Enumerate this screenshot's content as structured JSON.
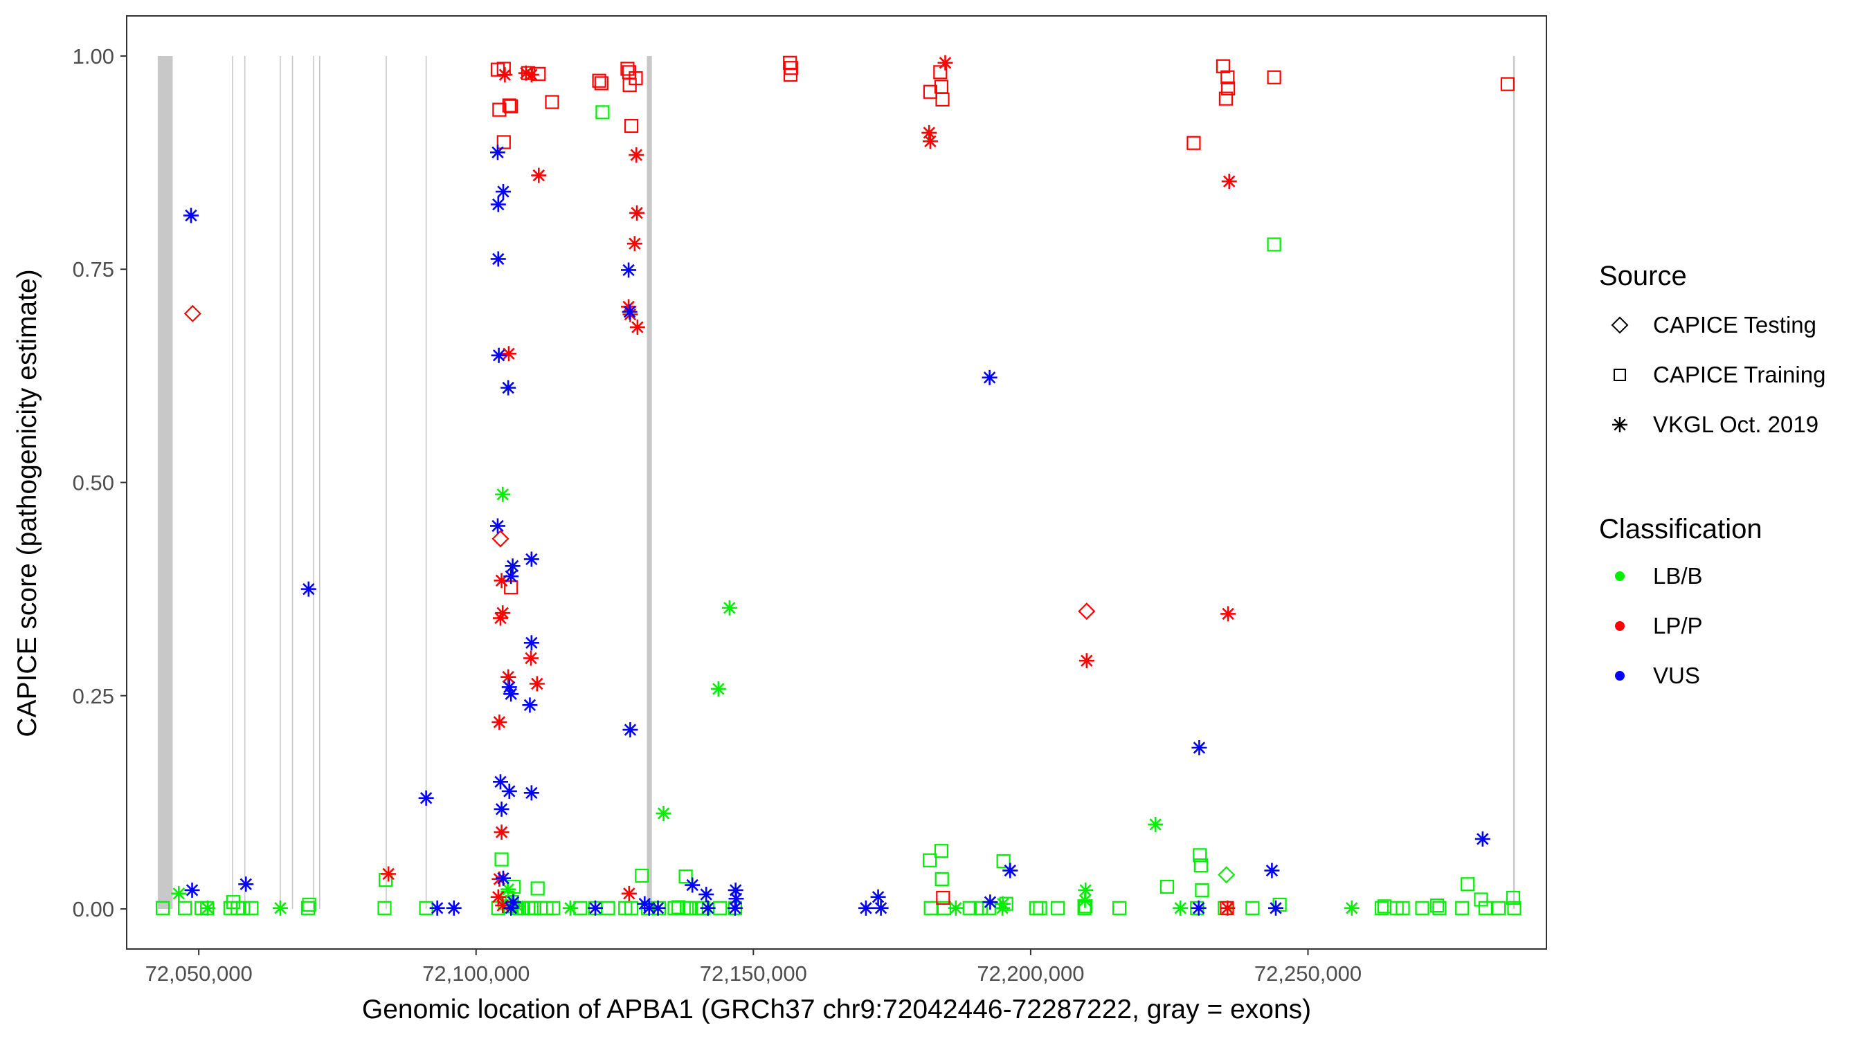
{
  "chart_data": {
    "type": "scatter",
    "xlabel": "Genomic location of APBA1 (GRCh37 chr9:72042446-72287222, gray = exons)",
    "ylabel": "CAPICE score (pathogenicity estimate)",
    "xlim": [
      72037000,
      72293000
    ],
    "ylim": [
      -0.047,
      1.047
    ],
    "x_ticks": [
      72050000,
      72100000,
      72150000,
      72200000,
      72250000
    ],
    "x_tick_labels": [
      "72,050,000",
      "72,100,000",
      "72,150,000",
      "72,200,000",
      "72,250,000"
    ],
    "y_ticks": [
      0,
      0.25,
      0.5,
      0.75,
      1.0
    ],
    "y_tick_labels": [
      "0.00",
      "0.25",
      "0.50",
      "0.75",
      "1.00"
    ],
    "grid": false,
    "exons": [
      [
        72042600,
        72045300
      ],
      [
        72056000,
        72056200
      ],
      [
        72058200,
        72058400
      ],
      [
        72064600,
        72064800
      ],
      [
        72066800,
        72067000
      ],
      [
        72070600,
        72070800
      ],
      [
        72071700,
        72071900
      ],
      [
        72083700,
        72083900
      ],
      [
        72090900,
        72091100
      ],
      [
        72130800,
        72131700
      ],
      [
        72287000,
        72287300
      ]
    ],
    "legend": {
      "placement": "right",
      "shape_title": "Source",
      "shape_entries": [
        {
          "label": "CAPICE Testing",
          "shape": "diamond"
        },
        {
          "label": "CAPICE Training",
          "shape": "square"
        },
        {
          "label": "VKGL Oct. 2019",
          "shape": "asterisk"
        }
      ],
      "color_title": "Classification",
      "color_entries": [
        {
          "label": "LB/B",
          "color": "#00ee00"
        },
        {
          "label": "LP/P",
          "color": "#ff0000"
        },
        {
          "label": "VUS",
          "color": "#0000ff"
        }
      ]
    },
    "colors": {
      "LB/B": "#00ee00",
      "LP/P": "#ff0000",
      "VUS": "#0000ff",
      "exon": "#c8c8c8"
    },
    "series": [
      {
        "name": "LB/B",
        "shape": "square",
        "points": [
          [
            72043500,
            0.001
          ],
          [
            72047500,
            0.001
          ],
          [
            72050500,
            0.001
          ],
          [
            72051500,
            0.001
          ],
          [
            72055700,
            0.001
          ],
          [
            72056200,
            0.008
          ],
          [
            72057000,
            0.001
          ],
          [
            72058000,
            0.001
          ],
          [
            72059500,
            0.001
          ],
          [
            72069700,
            0.001
          ],
          [
            72069900,
            0.005
          ],
          [
            72083500,
            0.001
          ],
          [
            72083700,
            0.034
          ],
          [
            72091000,
            0.001
          ],
          [
            72104000,
            0.001
          ],
          [
            72104600,
            0.058
          ],
          [
            72105200,
            0.007
          ],
          [
            72105700,
            0.013
          ],
          [
            72106000,
            0.003
          ],
          [
            72106500,
            0.008
          ],
          [
            72106800,
            0.026
          ],
          [
            72107400,
            0.001
          ],
          [
            72108500,
            0.001
          ],
          [
            72109400,
            0.001
          ],
          [
            72110000,
            0.001
          ],
          [
            72110500,
            0.001
          ],
          [
            72111100,
            0.024
          ],
          [
            72111700,
            0.001
          ],
          [
            72112700,
            0.001
          ],
          [
            72113900,
            0.001
          ],
          [
            72118800,
            0.001
          ],
          [
            72121500,
            0.001
          ],
          [
            72122800,
            0.934
          ],
          [
            72123800,
            0.001
          ],
          [
            72126900,
            0.001
          ],
          [
            72128000,
            0.001
          ],
          [
            72129900,
            0.039
          ],
          [
            72131000,
            0.001
          ],
          [
            72133000,
            0.001
          ],
          [
            72135800,
            0.001
          ],
          [
            72136500,
            0.002
          ],
          [
            72137800,
            0.038
          ],
          [
            72138000,
            0.001
          ],
          [
            72138500,
            0.001
          ],
          [
            72139700,
            0.001
          ],
          [
            72141000,
            0.001
          ],
          [
            72144000,
            0.001
          ],
          [
            72146700,
            0.001
          ],
          [
            72181800,
            0.057
          ],
          [
            72182000,
            0.001
          ],
          [
            72183900,
            0.068
          ],
          [
            72184000,
            0.035
          ],
          [
            72184400,
            0.001
          ],
          [
            72189000,
            0.001
          ],
          [
            72191000,
            0.001
          ],
          [
            72192500,
            0.001
          ],
          [
            72195100,
            0.056
          ],
          [
            72195600,
            0.006
          ],
          [
            72201000,
            0.001
          ],
          [
            72201700,
            0.001
          ],
          [
            72204900,
            0.001
          ],
          [
            72209700,
            0.001
          ],
          [
            72209900,
            0.003
          ],
          [
            72216000,
            0.001
          ],
          [
            72224600,
            0.026
          ],
          [
            72230000,
            0.001
          ],
          [
            72230500,
            0.063
          ],
          [
            72230700,
            0.051
          ],
          [
            72230900,
            0.022
          ],
          [
            72235000,
            0.001
          ],
          [
            72240000,
            0.001
          ],
          [
            72243900,
            0.779
          ],
          [
            72244900,
            0.005
          ],
          [
            72263300,
            0.001
          ],
          [
            72263800,
            0.003
          ],
          [
            72266000,
            0.001
          ],
          [
            72267100,
            0.001
          ],
          [
            72270600,
            0.001
          ],
          [
            72273300,
            0.004
          ],
          [
            72273700,
            0.001
          ],
          [
            72277800,
            0.001
          ],
          [
            72278800,
            0.029
          ],
          [
            72281200,
            0.011
          ],
          [
            72282000,
            0.001
          ],
          [
            72284400,
            0.001
          ],
          [
            72287000,
            0.013
          ],
          [
            72287200,
            0.001
          ]
        ]
      },
      {
        "name": "LB/B",
        "shape": "asterisk",
        "points": [
          [
            72046400,
            0.018
          ],
          [
            72051600,
            0.001
          ],
          [
            72064700,
            0.001
          ],
          [
            72104800,
            0.486
          ],
          [
            72105800,
            0.023
          ],
          [
            72107500,
            0.003
          ],
          [
            72117000,
            0.001
          ],
          [
            72133800,
            0.112
          ],
          [
            72143700,
            0.258
          ],
          [
            72145700,
            0.353
          ],
          [
            72194900,
            0.001
          ],
          [
            72209900,
            0.022
          ],
          [
            72209800,
            0.01
          ],
          [
            72222500,
            0.099
          ],
          [
            72227000,
            0.001
          ],
          [
            72257900,
            0.001
          ],
          [
            72195000,
            0.006
          ],
          [
            72186500,
            0.001
          ]
        ]
      },
      {
        "name": "LB/B",
        "shape": "diamond",
        "points": [
          [
            72235300,
            0.04
          ]
        ]
      },
      {
        "name": "LP/P",
        "shape": "square",
        "points": [
          [
            72103900,
            0.984
          ],
          [
            72105000,
            0.985
          ],
          [
            72104200,
            0.937
          ],
          [
            72106000,
            0.942
          ],
          [
            72106300,
            0.941
          ],
          [
            72105000,
            0.899
          ],
          [
            72109400,
            0.98
          ],
          [
            72111300,
            0.979
          ],
          [
            72113700,
            0.946
          ],
          [
            72122200,
            0.971
          ],
          [
            72122600,
            0.968
          ],
          [
            72127300,
            0.985
          ],
          [
            72127700,
            0.966
          ],
          [
            72128000,
            0.918
          ],
          [
            72128800,
            0.974
          ],
          [
            72127600,
            0.981
          ],
          [
            72156600,
            0.992
          ],
          [
            72156700,
            0.978
          ],
          [
            72156800,
            0.986
          ],
          [
            72181900,
            0.958
          ],
          [
            72183700,
            0.981
          ],
          [
            72183900,
            0.964
          ],
          [
            72184100,
            0.949
          ],
          [
            72229400,
            0.898
          ],
          [
            72234700,
            0.988
          ],
          [
            72235200,
            0.95
          ],
          [
            72235500,
            0.975
          ],
          [
            72235600,
            0.962
          ],
          [
            72243900,
            0.975
          ],
          [
            72286000,
            0.967
          ],
          [
            72106300,
            0.377
          ],
          [
            72184200,
            0.013
          ],
          [
            72235400,
            0.001
          ]
        ]
      },
      {
        "name": "LP/P",
        "shape": "asterisk",
        "points": [
          [
            72084200,
            0.041
          ],
          [
            72104200,
            0.035
          ],
          [
            72104600,
            0.385
          ],
          [
            72104800,
            0.347
          ],
          [
            72104400,
            0.341
          ],
          [
            72104200,
            0.219
          ],
          [
            72104600,
            0.09
          ],
          [
            72104000,
            0.014
          ],
          [
            72104800,
            0.004
          ],
          [
            72105200,
            0.978
          ],
          [
            72105900,
            0.651
          ],
          [
            72105800,
            0.272
          ],
          [
            72109000,
            0.98
          ],
          [
            72110000,
            0.978
          ],
          [
            72109900,
            0.294
          ],
          [
            72111000,
            0.264
          ],
          [
            72111300,
            0.86
          ],
          [
            72127500,
            0.706
          ],
          [
            72127800,
            0.697
          ],
          [
            72128600,
            0.78
          ],
          [
            72128900,
            0.884
          ],
          [
            72129000,
            0.816
          ],
          [
            72129100,
            0.682
          ],
          [
            72127600,
            0.018
          ],
          [
            72181700,
            0.91
          ],
          [
            72181900,
            0.9
          ],
          [
            72184600,
            0.992
          ],
          [
            72210100,
            0.291
          ],
          [
            72235600,
            0.346
          ],
          [
            72235800,
            0.853
          ],
          [
            72235500,
            0.001
          ]
        ]
      },
      {
        "name": "LP/P",
        "shape": "diamond",
        "points": [
          [
            72048900,
            0.698
          ],
          [
            72104400,
            0.434
          ],
          [
            72210100,
            0.349
          ]
        ]
      },
      {
        "name": "VUS",
        "shape": "asterisk",
        "points": [
          [
            72048600,
            0.813
          ],
          [
            72048800,
            0.022
          ],
          [
            72058500,
            0.029
          ],
          [
            72069800,
            0.375
          ],
          [
            72091000,
            0.13
          ],
          [
            72093000,
            0.001
          ],
          [
            72096000,
            0.001
          ],
          [
            72103900,
            0.887
          ],
          [
            72104000,
            0.826
          ],
          [
            72104900,
            0.841
          ],
          [
            72104000,
            0.762
          ],
          [
            72104100,
            0.649
          ],
          [
            72105800,
            0.611
          ],
          [
            72103900,
            0.449
          ],
          [
            72106600,
            0.402
          ],
          [
            72106300,
            0.39
          ],
          [
            72110000,
            0.41
          ],
          [
            72110000,
            0.312
          ],
          [
            72106000,
            0.26
          ],
          [
            72106300,
            0.252
          ],
          [
            72109700,
            0.239
          ],
          [
            72104400,
            0.149
          ],
          [
            72104600,
            0.117
          ],
          [
            72106000,
            0.138
          ],
          [
            72110000,
            0.136
          ],
          [
            72104900,
            0.036
          ],
          [
            72106700,
            0.008
          ],
          [
            72106300,
            0.001
          ],
          [
            72127500,
            0.749
          ],
          [
            72127700,
            0.7
          ],
          [
            72127800,
            0.21
          ],
          [
            72130400,
            0.006
          ],
          [
            72131200,
            0.001
          ],
          [
            72132800,
            0.001
          ],
          [
            72139000,
            0.028
          ],
          [
            72141500,
            0.017
          ],
          [
            72141800,
            0.001
          ],
          [
            72146800,
            0.022
          ],
          [
            72146900,
            0.012
          ],
          [
            72146700,
            0.001
          ],
          [
            72170300,
            0.001
          ],
          [
            72172500,
            0.014
          ],
          [
            72173000,
            0.001
          ],
          [
            72192600,
            0.623
          ],
          [
            72192700,
            0.008
          ],
          [
            72196300,
            0.045
          ],
          [
            72230400,
            0.189
          ],
          [
            72230300,
            0.001
          ],
          [
            72243500,
            0.045
          ],
          [
            72244200,
            0.001
          ],
          [
            72281500,
            0.082
          ],
          [
            72121500,
            0.001
          ]
        ]
      }
    ]
  }
}
